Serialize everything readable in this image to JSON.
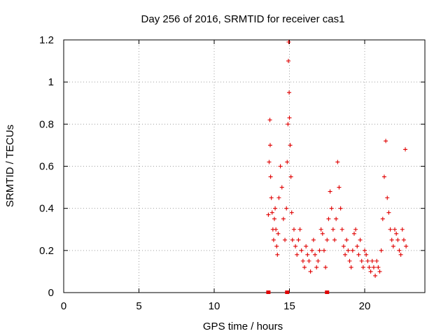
{
  "chart_data": {
    "type": "scatter",
    "title": "Day 256 of 2016, SRMTID for receiver cas1",
    "xlabel": "GPS time / hours",
    "ylabel": "SRMTID / TECUs",
    "xlim": [
      0,
      24
    ],
    "ylim": [
      0,
      1.2
    ],
    "xticks": [
      0,
      5,
      10,
      15,
      20
    ],
    "xtick_labels": [
      "0",
      "5",
      "10",
      "15",
      "20"
    ],
    "yticks": [
      0,
      0.2,
      0.4,
      0.6,
      0.8,
      1.0,
      1.2
    ],
    "ytick_labels": [
      "0",
      "0.2",
      "0.4",
      "0.6",
      "0.8",
      "1",
      "1.2"
    ],
    "grid": true,
    "marker": "+",
    "color": "#e00000",
    "series": [
      {
        "name": "SRMTID",
        "x": [
          13.6,
          13.65,
          13.7,
          13.72,
          13.75,
          13.8,
          13.85,
          13.9,
          13.95,
          14.0,
          14.05,
          14.1,
          14.15,
          14.2,
          14.25,
          14.3,
          14.4,
          14.5,
          14.6,
          14.7,
          14.8,
          14.85,
          14.9,
          14.93,
          14.95,
          14.98,
          15.0,
          15.05,
          15.1,
          15.15,
          15.2,
          15.3,
          15.4,
          15.5,
          15.6,
          15.7,
          15.8,
          15.9,
          16.0,
          16.1,
          16.2,
          16.3,
          16.4,
          16.5,
          16.6,
          16.7,
          16.8,
          16.9,
          17.0,
          17.1,
          17.2,
          17.3,
          17.4,
          17.5,
          17.6,
          17.7,
          17.8,
          17.9,
          18.0,
          18.1,
          18.2,
          18.3,
          18.4,
          18.5,
          18.6,
          18.7,
          18.8,
          18.9,
          19.0,
          19.1,
          19.2,
          19.3,
          19.4,
          19.5,
          19.6,
          19.7,
          19.8,
          19.9,
          20.0,
          20.1,
          20.2,
          20.3,
          20.4,
          20.5,
          20.6,
          20.7,
          20.8,
          20.9,
          21.0,
          21.1,
          21.2,
          21.3,
          21.4,
          21.5,
          21.6,
          21.7,
          21.8,
          21.9,
          22.0,
          22.1,
          22.2,
          22.3,
          22.4,
          22.5,
          22.6,
          22.7,
          22.75
        ],
        "y": [
          0.37,
          0.62,
          0.82,
          0.7,
          0.55,
          0.45,
          0.38,
          0.3,
          0.25,
          0.35,
          0.4,
          0.3,
          0.22,
          0.18,
          0.28,
          0.45,
          0.6,
          0.5,
          0.35,
          0.25,
          0.4,
          0.62,
          0.8,
          1.1,
          1.19,
          0.95,
          0.83,
          0.7,
          0.55,
          0.38,
          0.25,
          0.3,
          0.22,
          0.18,
          0.25,
          0.3,
          0.2,
          0.15,
          0.12,
          0.22,
          0.18,
          0.15,
          0.1,
          0.2,
          0.25,
          0.18,
          0.12,
          0.15,
          0.2,
          0.3,
          0.28,
          0.2,
          0.12,
          0.25,
          0.35,
          0.48,
          0.4,
          0.3,
          0.25,
          0.35,
          0.62,
          0.5,
          0.4,
          0.3,
          0.22,
          0.18,
          0.25,
          0.2,
          0.15,
          0.12,
          0.2,
          0.28,
          0.3,
          0.22,
          0.18,
          0.25,
          0.15,
          0.12,
          0.2,
          0.18,
          0.15,
          0.12,
          0.1,
          0.15,
          0.12,
          0.08,
          0.15,
          0.12,
          0.1,
          0.2,
          0.35,
          0.55,
          0.72,
          0.45,
          0.38,
          0.3,
          0.25,
          0.22,
          0.3,
          0.28,
          0.25,
          0.2,
          0.18,
          0.3,
          0.25,
          0.68,
          0.22
        ]
      }
    ],
    "zero_markers_x": [
      13.6,
      14.85,
      17.5
    ]
  }
}
